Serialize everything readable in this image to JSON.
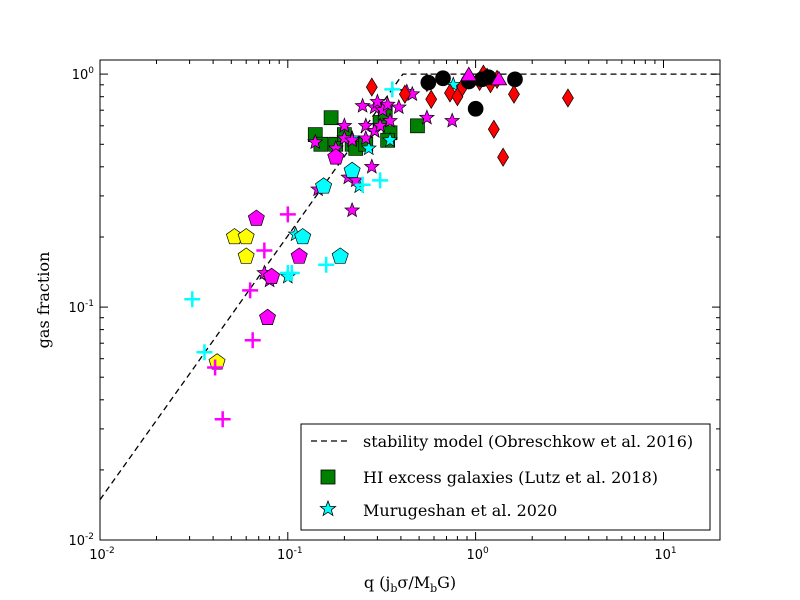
{
  "chart_data": {
    "type": "scatter",
    "title": "",
    "xlabel": "q (j_b σ/M_b G)",
    "ylabel": "gas fraction",
    "xscale": "log",
    "yscale": "log",
    "xlim": [
      0.01,
      20
    ],
    "ylim": [
      0.01,
      1.15
    ],
    "x_ticks": [
      {
        "base": "10",
        "exp": "-2",
        "value": 0.01
      },
      {
        "base": "10",
        "exp": "-1",
        "value": 0.1
      },
      {
        "base": "10",
        "exp": "0",
        "value": 1
      },
      {
        "base": "10",
        "exp": "1",
        "value": 10
      }
    ],
    "y_ticks": [
      {
        "base": "10",
        "exp": "-2",
        "value": 0.01
      },
      {
        "base": "10",
        "exp": "-1",
        "value": 0.1
      },
      {
        "base": "10",
        "exp": "0",
        "value": 1
      }
    ],
    "legend_position": "lower-right",
    "legend": [
      {
        "label": "stability model (Obreschkow et al. 2016)",
        "marker": "dashed-line"
      },
      {
        "label": "HI excess galaxies (Lutz et al. 2018)",
        "marker": "square",
        "color": "#008000"
      },
      {
        "label": "Murugeshan et al. 2020",
        "marker": "star",
        "color": "#00ffff"
      }
    ],
    "model_line": {
      "name": "stability model (Obreschkow et al. 2016)",
      "x": [
        0.01,
        0.41,
        20
      ],
      "y": [
        0.0149,
        1.0,
        1.0
      ],
      "style": "dashed",
      "color": "#000000"
    },
    "series": [
      {
        "name": "HI excess galaxies (Lutz et al. 2018)",
        "marker": "square",
        "color": "#008000",
        "points": [
          [
            0.14,
            0.55
          ],
          [
            0.15,
            0.5
          ],
          [
            0.17,
            0.65
          ],
          [
            0.18,
            0.5
          ],
          [
            0.2,
            0.55
          ],
          [
            0.22,
            0.5
          ],
          [
            0.23,
            0.48
          ],
          [
            0.26,
            0.5
          ],
          [
            0.31,
            0.62
          ],
          [
            0.33,
            0.68
          ],
          [
            0.35,
            0.56
          ],
          [
            0.49,
            0.6
          ],
          [
            0.34,
            0.52
          ]
        ]
      },
      {
        "name": "Murugeshan et al. 2020",
        "marker": "star",
        "color": "#00ffff",
        "points": [
          [
            0.1,
            0.135
          ],
          [
            0.11,
            0.205
          ],
          [
            0.22,
            0.53
          ],
          [
            0.24,
            0.33
          ],
          [
            0.27,
            0.48
          ],
          [
            0.29,
            0.57
          ],
          [
            0.35,
            0.52
          ],
          [
            0.76,
            0.9
          ]
        ]
      },
      {
        "name": "magenta stars",
        "marker": "star",
        "color": "#ff00ff",
        "points": [
          [
            0.075,
            0.14
          ],
          [
            0.08,
            0.13
          ],
          [
            0.14,
            0.51
          ],
          [
            0.145,
            0.32
          ],
          [
            0.18,
            0.48
          ],
          [
            0.2,
            0.6
          ],
          [
            0.2,
            0.53
          ],
          [
            0.21,
            0.36
          ],
          [
            0.22,
            0.26
          ],
          [
            0.22,
            0.52
          ],
          [
            0.23,
            0.35
          ],
          [
            0.25,
            0.73
          ],
          [
            0.26,
            0.6
          ],
          [
            0.26,
            0.53
          ],
          [
            0.28,
            0.4
          ],
          [
            0.29,
            0.72
          ],
          [
            0.29,
            0.57
          ],
          [
            0.3,
            0.76
          ],
          [
            0.31,
            0.6
          ],
          [
            0.32,
            0.7
          ],
          [
            0.34,
            0.74
          ],
          [
            0.35,
            0.63
          ],
          [
            0.39,
            0.72
          ],
          [
            0.43,
            0.84
          ],
          [
            0.46,
            0.82
          ],
          [
            0.55,
            0.65
          ],
          [
            0.75,
            0.63
          ]
        ]
      },
      {
        "name": "cyan pentagons",
        "marker": "pentagon",
        "color": "#00ffff",
        "points": [
          [
            0.12,
            0.2
          ],
          [
            0.155,
            0.33
          ],
          [
            0.19,
            0.165
          ],
          [
            0.22,
            0.385
          ]
        ]
      },
      {
        "name": "magenta pentagons",
        "marker": "pentagon",
        "color": "#ff00ff",
        "points": [
          [
            0.068,
            0.24
          ],
          [
            0.078,
            0.09
          ],
          [
            0.082,
            0.135
          ],
          [
            0.115,
            0.165
          ],
          [
            0.18,
            0.44
          ]
        ]
      },
      {
        "name": "yellow pentagons",
        "marker": "pentagon",
        "color": "#ffff00",
        "points": [
          [
            0.052,
            0.2
          ],
          [
            0.06,
            0.2
          ],
          [
            0.06,
            0.165
          ],
          [
            0.042,
            0.058
          ]
        ]
      },
      {
        "name": "cyan crosses",
        "marker": "plus",
        "color": "#00ffff",
        "points": [
          [
            0.031,
            0.108
          ],
          [
            0.036,
            0.064
          ],
          [
            0.1,
            0.14
          ],
          [
            0.105,
            0.14
          ],
          [
            0.16,
            0.152
          ],
          [
            0.25,
            0.335
          ],
          [
            0.31,
            0.35
          ],
          [
            0.36,
            0.86
          ]
        ]
      },
      {
        "name": "magenta crosses",
        "marker": "plus",
        "color": "#ff00ff",
        "points": [
          [
            0.041,
            0.055
          ],
          [
            0.045,
            0.033
          ],
          [
            0.063,
            0.118
          ],
          [
            0.065,
            0.072
          ],
          [
            0.075,
            0.175
          ],
          [
            0.1,
            0.25
          ]
        ]
      },
      {
        "name": "red diamonds",
        "marker": "diamond",
        "color": "#ff0000",
        "points": [
          [
            0.28,
            0.88
          ],
          [
            0.42,
            0.82
          ],
          [
            0.55,
            0.92
          ],
          [
            0.58,
            0.78
          ],
          [
            0.73,
            0.83
          ],
          [
            0.8,
            0.8
          ],
          [
            0.85,
            0.88
          ],
          [
            0.9,
            0.95
          ],
          [
            1.05,
            0.93
          ],
          [
            1.1,
            1.0
          ],
          [
            1.15,
            0.97
          ],
          [
            1.2,
            0.91
          ],
          [
            1.25,
            0.58
          ],
          [
            1.3,
            0.95
          ],
          [
            1.4,
            0.44
          ],
          [
            1.6,
            0.82
          ],
          [
            3.1,
            0.79
          ]
        ]
      },
      {
        "name": "black circles",
        "marker": "circle",
        "color": "#000000",
        "points": [
          [
            0.56,
            0.92
          ],
          [
            0.67,
            0.96
          ],
          [
            0.92,
            0.93
          ],
          [
            1.0,
            0.71
          ],
          [
            1.08,
            0.95
          ],
          [
            1.17,
            0.97
          ],
          [
            1.62,
            0.95
          ]
        ]
      },
      {
        "name": "magenta triangles",
        "marker": "triangle",
        "color": "#ff00ff",
        "points": [
          [
            0.92,
            0.98
          ],
          [
            1.33,
            0.94
          ]
        ]
      }
    ]
  }
}
